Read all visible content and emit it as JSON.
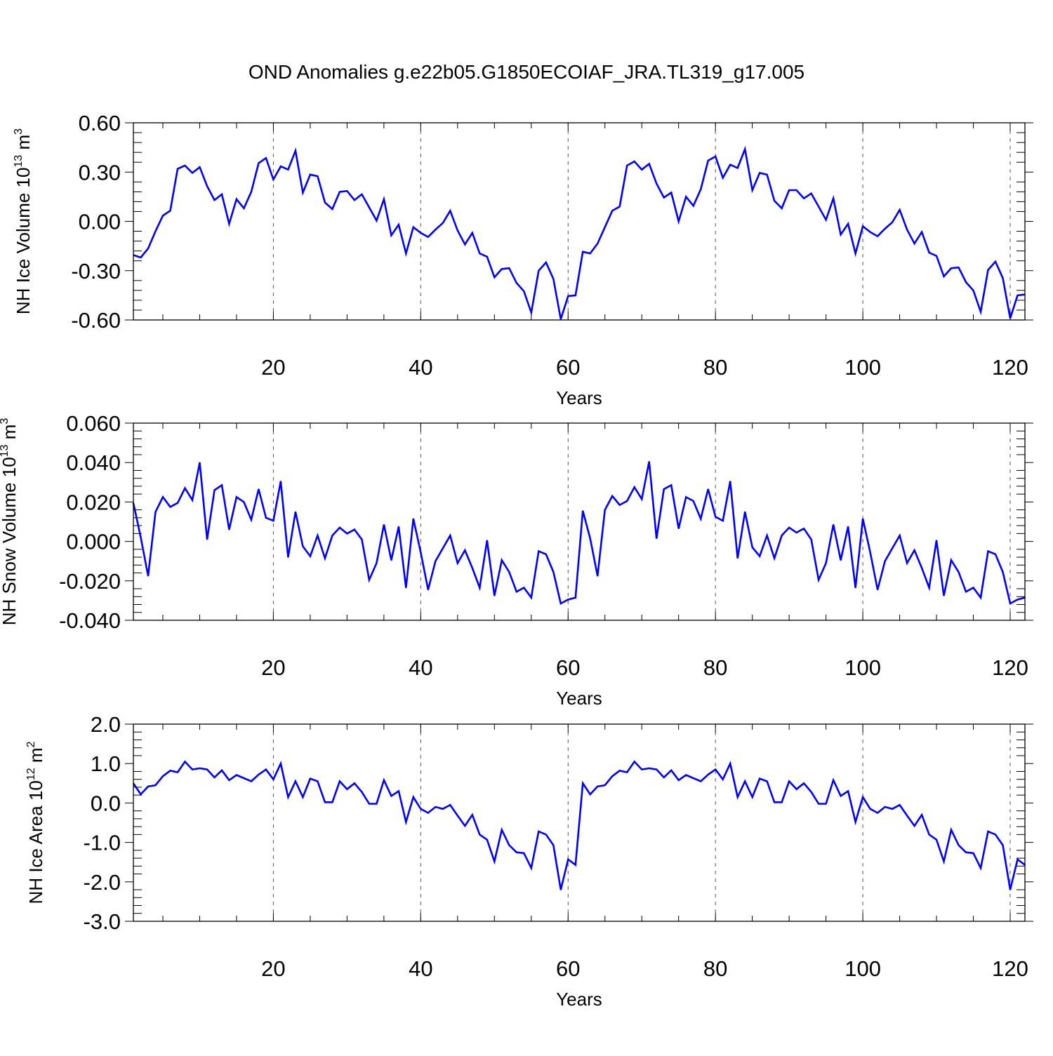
{
  "title": "OND Anomalies g.e22b05.G1850ECOIAF_JRA.TL319_g17.005",
  "colors": {
    "series": "#0000ff",
    "axis": "#000000",
    "grid": "#555555"
  },
  "chart_data": [
    {
      "type": "line",
      "name": "ice-volume",
      "ylabel_main": "NH Ice Volume 10",
      "ylabel_exp": "13",
      "ylabel_unit": " m",
      "ylabel_unit_exp": "3",
      "xlabel": "Years",
      "xlim": [
        1,
        122
      ],
      "ylim": [
        -0.6,
        0.6
      ],
      "yticks": [
        -0.6,
        -0.3,
        0.0,
        0.3,
        0.6
      ],
      "yticklabels": [
        "-0.60",
        "-0.30",
        "0.00",
        "0.30",
        "0.60"
      ],
      "xticks": [
        20,
        40,
        60,
        80,
        100,
        120
      ],
      "xticklabels": [
        "20",
        "40",
        "60",
        "80",
        "100",
        "120"
      ],
      "gridlines_x": [
        20,
        40,
        60,
        80,
        100,
        120
      ],
      "x_start": 1,
      "values": [
        -0.205,
        -0.22,
        -0.165,
        -0.06,
        0.035,
        0.065,
        0.32,
        0.34,
        0.295,
        0.33,
        0.215,
        0.13,
        0.165,
        -0.015,
        0.135,
        0.08,
        0.18,
        0.355,
        0.385,
        0.255,
        0.335,
        0.315,
        0.43,
        0.175,
        0.285,
        0.275,
        0.115,
        0.075,
        0.18,
        0.185,
        0.13,
        0.165,
        0.085,
        0.005,
        0.135,
        -0.085,
        -0.02,
        -0.195,
        -0.035,
        -0.07,
        -0.095,
        -0.05,
        -0.01,
        0.065,
        -0.055,
        -0.14,
        -0.07,
        -0.195,
        -0.215,
        -0.34,
        -0.29,
        -0.285,
        -0.375,
        -0.425,
        -0.555,
        -0.3,
        -0.25,
        -0.35,
        -0.595,
        -0.455,
        -0.45,
        -0.185,
        -0.195,
        -0.135,
        -0.035,
        0.065,
        0.09,
        0.34,
        0.365,
        0.315,
        0.35,
        0.23,
        0.145,
        0.175,
        0.0,
        0.15,
        0.095,
        0.195,
        0.37,
        0.395,
        0.265,
        0.345,
        0.325,
        0.44,
        0.19,
        0.295,
        0.285,
        0.125,
        0.08,
        0.19,
        0.19,
        0.14,
        0.17,
        0.09,
        0.01,
        0.14,
        -0.08,
        -0.015,
        -0.195,
        -0.03,
        -0.065,
        -0.09,
        -0.045,
        -0.005,
        0.07,
        -0.05,
        -0.135,
        -0.065,
        -0.19,
        -0.21,
        -0.335,
        -0.285,
        -0.28,
        -0.37,
        -0.42,
        -0.55,
        -0.295,
        -0.245,
        -0.345,
        -0.59,
        -0.45,
        -0.445
      ]
    },
    {
      "type": "line",
      "name": "snow-volume",
      "ylabel_main": "NH Snow Volume 10",
      "ylabel_exp": "13",
      "ylabel_unit": " m",
      "ylabel_unit_exp": "3",
      "xlabel": "Years",
      "xlim": [
        1,
        122
      ],
      "ylim": [
        -0.04,
        0.06
      ],
      "yticks": [
        -0.04,
        -0.02,
        0.0,
        0.02,
        0.04,
        0.06
      ],
      "yticklabels": [
        "-0.040",
        "-0.020",
        "0.000",
        "0.020",
        "0.040",
        "0.060"
      ],
      "xticks": [
        20,
        40,
        60,
        80,
        100,
        120
      ],
      "xticklabels": [
        "20",
        "40",
        "60",
        "80",
        "100",
        "120"
      ],
      "gridlines_x": [
        20,
        40,
        60,
        80,
        100,
        120
      ],
      "x_start": 1,
      "values": [
        0.0195,
        0.002,
        -0.0175,
        0.015,
        0.0225,
        0.0175,
        0.0195,
        0.027,
        0.021,
        0.04,
        0.001,
        0.026,
        0.0285,
        0.006,
        0.0225,
        0.02,
        0.011,
        0.0265,
        0.012,
        0.0105,
        0.0305,
        -0.008,
        0.015,
        -0.0025,
        -0.0075,
        0.003,
        -0.0085,
        0.003,
        0.007,
        0.004,
        0.006,
        0.001,
        -0.0195,
        -0.011,
        0.0085,
        -0.0095,
        0.0075,
        -0.0235,
        0.0115,
        -0.0055,
        -0.0245,
        -0.01,
        -0.0035,
        0.003,
        -0.011,
        -0.0045,
        -0.0135,
        -0.0235,
        0.0005,
        -0.0275,
        -0.0095,
        -0.0155,
        -0.0255,
        -0.0235,
        -0.0285,
        -0.005,
        -0.0065,
        -0.0155,
        -0.0315,
        -0.0295,
        -0.0285,
        0.0155,
        0.0015,
        -0.0175,
        0.016,
        0.023,
        0.0185,
        0.0205,
        0.0275,
        0.0215,
        0.0405,
        0.0015,
        0.0265,
        0.0285,
        0.0065,
        0.0225,
        0.0205,
        0.0115,
        0.0265,
        0.0125,
        0.0105,
        0.0305,
        -0.0085,
        0.015,
        -0.003,
        -0.0075,
        0.003,
        -0.0085,
        0.003,
        0.007,
        0.0045,
        0.0065,
        0.001,
        -0.0195,
        -0.011,
        0.0085,
        -0.0095,
        0.0075,
        -0.0235,
        0.0115,
        -0.0055,
        -0.0245,
        -0.01,
        -0.0035,
        0.003,
        -0.011,
        -0.0045,
        -0.0135,
        -0.0235,
        0.0005,
        -0.0275,
        -0.0095,
        -0.0155,
        -0.0255,
        -0.0235,
        -0.0285,
        -0.005,
        -0.0065,
        -0.0155,
        -0.0315,
        -0.0295,
        -0.0285
      ]
    },
    {
      "type": "line",
      "name": "ice-area",
      "ylabel_main": "NH Ice Area 10",
      "ylabel_exp": "12",
      "ylabel_unit": " m",
      "ylabel_unit_exp": "2",
      "xlabel": "Years",
      "xlim": [
        1,
        122
      ],
      "ylim": [
        -3.0,
        2.0
      ],
      "yticks": [
        -3.0,
        -2.0,
        -1.0,
        0.0,
        1.0,
        2.0
      ],
      "yticklabels": [
        "-3.0",
        "-2.0",
        "-1.0",
        "0.0",
        "1.0",
        "2.0"
      ],
      "xticks": [
        20,
        40,
        60,
        80,
        100,
        120
      ],
      "xticklabels": [
        "20",
        "40",
        "60",
        "80",
        "100",
        "120"
      ],
      "gridlines_x": [
        20,
        40,
        60,
        80,
        100,
        120
      ],
      "x_start": 1,
      "values": [
        0.5,
        0.22,
        0.42,
        0.45,
        0.68,
        0.82,
        0.78,
        1.05,
        0.85,
        0.88,
        0.85,
        0.65,
        0.83,
        0.58,
        0.71,
        0.63,
        0.55,
        0.72,
        0.85,
        0.6,
        1.0,
        0.15,
        0.55,
        0.15,
        0.62,
        0.55,
        0.02,
        0.02,
        0.55,
        0.35,
        0.5,
        0.28,
        -0.02,
        -0.02,
        0.58,
        0.18,
        0.3,
        -0.48,
        0.15,
        -0.15,
        -0.25,
        -0.1,
        -0.15,
        -0.05,
        -0.32,
        -0.58,
        -0.3,
        -0.8,
        -0.93,
        -1.48,
        -0.68,
        -1.07,
        -1.25,
        -1.27,
        -1.65,
        -0.72,
        -0.8,
        -1.07,
        -2.2,
        -1.43,
        -1.57,
        0.5,
        0.22,
        0.42,
        0.45,
        0.68,
        0.82,
        0.78,
        1.05,
        0.85,
        0.88,
        0.85,
        0.65,
        0.83,
        0.58,
        0.71,
        0.63,
        0.55,
        0.72,
        0.85,
        0.6,
        1.0,
        0.15,
        0.55,
        0.15,
        0.62,
        0.55,
        0.02,
        0.02,
        0.55,
        0.35,
        0.5,
        0.28,
        -0.02,
        -0.02,
        0.58,
        0.18,
        0.3,
        -0.48,
        0.15,
        -0.15,
        -0.25,
        -0.1,
        -0.15,
        -0.05,
        -0.32,
        -0.58,
        -0.3,
        -0.8,
        -0.93,
        -1.48,
        -0.68,
        -1.07,
        -1.25,
        -1.27,
        -1.65,
        -0.72,
        -0.8,
        -1.07,
        -2.2,
        -1.43,
        -1.57
      ]
    }
  ]
}
